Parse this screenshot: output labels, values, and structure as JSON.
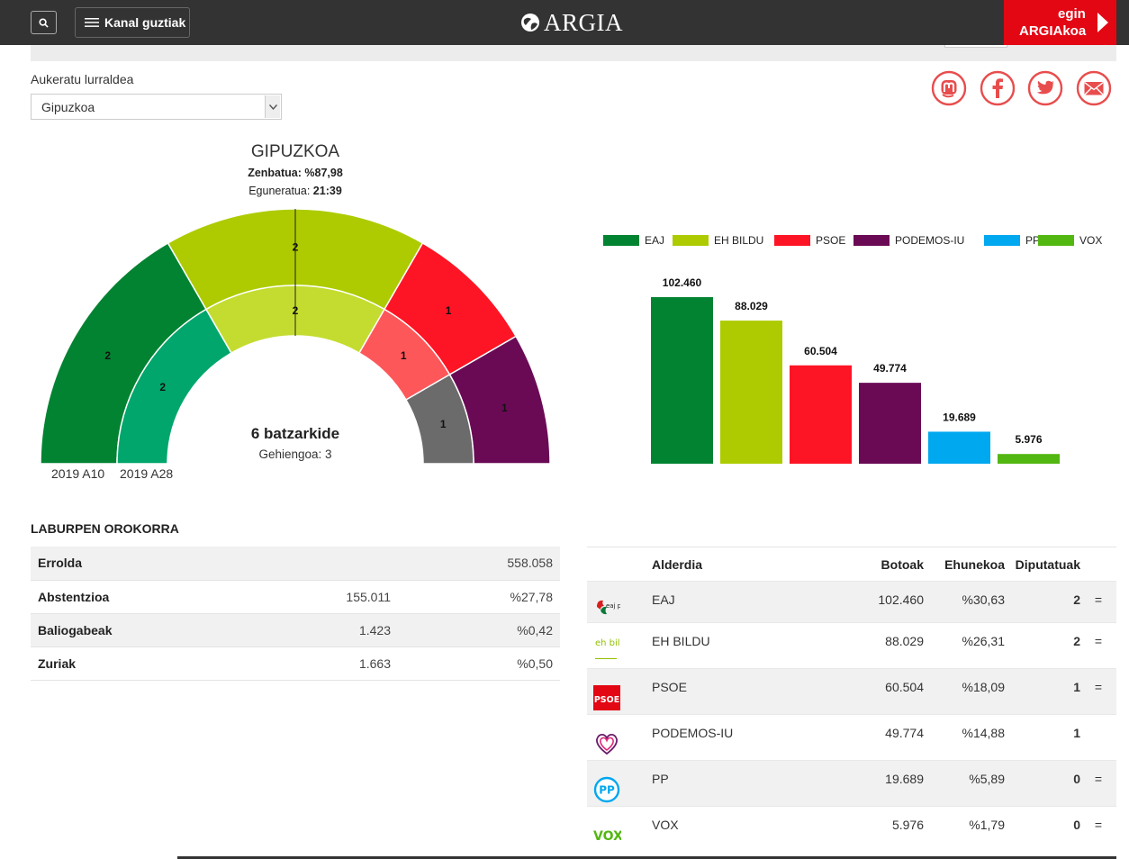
{
  "header": {
    "menu_label": "Kanal guztiak",
    "logo_text": "ARGIA",
    "cta_line1": "egin",
    "cta_line2": "ARGIAkoa"
  },
  "selector": {
    "label": "Aukeratu lurraldea",
    "selected": "Gipuzkoa"
  },
  "social": [
    "mastodon-icon",
    "facebook-icon",
    "twitter-icon",
    "email-icon"
  ],
  "seats_chart": {
    "title": "GIPUZKOA",
    "counted_label": "Zenbatua:",
    "counted_value": "%87,98",
    "updated_label": "Eguneratua:",
    "updated_value": "21:39",
    "total": "6 batzarkide",
    "majority": "Gehiengoa: 3",
    "outer_ring_label": "2019 A10",
    "inner_ring_label": "2019 A28"
  },
  "chart_data": [
    {
      "type": "pie",
      "title": "GIPUZKOA",
      "rings": [
        {
          "name": "2019 A10",
          "categories": [
            "EAJ",
            "EH BILDU",
            "PSOE",
            "PODEMOS-IU"
          ],
          "values": [
            2,
            2,
            1,
            1
          ],
          "colors": [
            "#028331",
            "#adcb00",
            "#fe1525",
            "#6a0a55"
          ]
        },
        {
          "name": "2019 A28",
          "categories": [
            "EAJ",
            "EH BILDU",
            "PSOE",
            "PP"
          ],
          "values": [
            2,
            2,
            1,
            1
          ],
          "colors": [
            "#00a66b",
            "#c4dc2f",
            "#fe575a",
            "#6b6b6b"
          ]
        }
      ]
    },
    {
      "type": "bar",
      "categories": [
        "EAJ",
        "EH BILDU",
        "PSOE",
        "PODEMOS-IU",
        "PP",
        "VOX"
      ],
      "values": [
        102460,
        88029,
        60504,
        49774,
        19689,
        5976
      ],
      "value_labels": [
        "102.460",
        "88.029",
        "60.504",
        "49.774",
        "19.689",
        "5.976"
      ],
      "colors": [
        "#028331",
        "#adcb00",
        "#fe1525",
        "#6a0a55",
        "#00a8ef",
        "#53b712"
      ],
      "legend": "top"
    }
  ],
  "summary": {
    "title": "LABURPEN OROKORRA",
    "rows": [
      {
        "label": "Errolda",
        "count": "",
        "value": "558.058"
      },
      {
        "label": "Abstentzioa",
        "count": "155.011",
        "value": "%27,78"
      },
      {
        "label": "Baliogabeak",
        "count": "1.423",
        "value": "%0,42"
      },
      {
        "label": "Zuriak",
        "count": "1.663",
        "value": "%0,50"
      }
    ]
  },
  "results": {
    "headers": {
      "party": "Alderdia",
      "votes": "Botoak",
      "percent": "Ehunekoa",
      "seats": "Diputatuak"
    },
    "rows": [
      {
        "logo": "eaj-logo",
        "party": "EAJ",
        "votes": "102.460",
        "percent": "%30,63",
        "seats": "2",
        "change": "="
      },
      {
        "logo": "ehbildu-logo",
        "party": "EH BILDU",
        "votes": "88.029",
        "percent": "%26,31",
        "seats": "2",
        "change": "="
      },
      {
        "logo": "psoe-logo",
        "party": "PSOE",
        "votes": "60.504",
        "percent": "%18,09",
        "seats": "1",
        "change": "="
      },
      {
        "logo": "podemos-logo",
        "party": "PODEMOS-IU",
        "votes": "49.774",
        "percent": "%14,88",
        "seats": "1",
        "change": ""
      },
      {
        "logo": "pp-logo",
        "party": "PP",
        "votes": "19.689",
        "percent": "%5,89",
        "seats": "0",
        "change": "="
      },
      {
        "logo": "vox-logo",
        "party": "VOX",
        "votes": "5.976",
        "percent": "%1,79",
        "seats": "0",
        "change": "="
      }
    ],
    "logo_texts": {
      "eaj": "eaj pnv",
      "ehbildu": "eh bildu",
      "psoe": "PSOE",
      "pp": "PP",
      "vox": "VOX"
    }
  }
}
